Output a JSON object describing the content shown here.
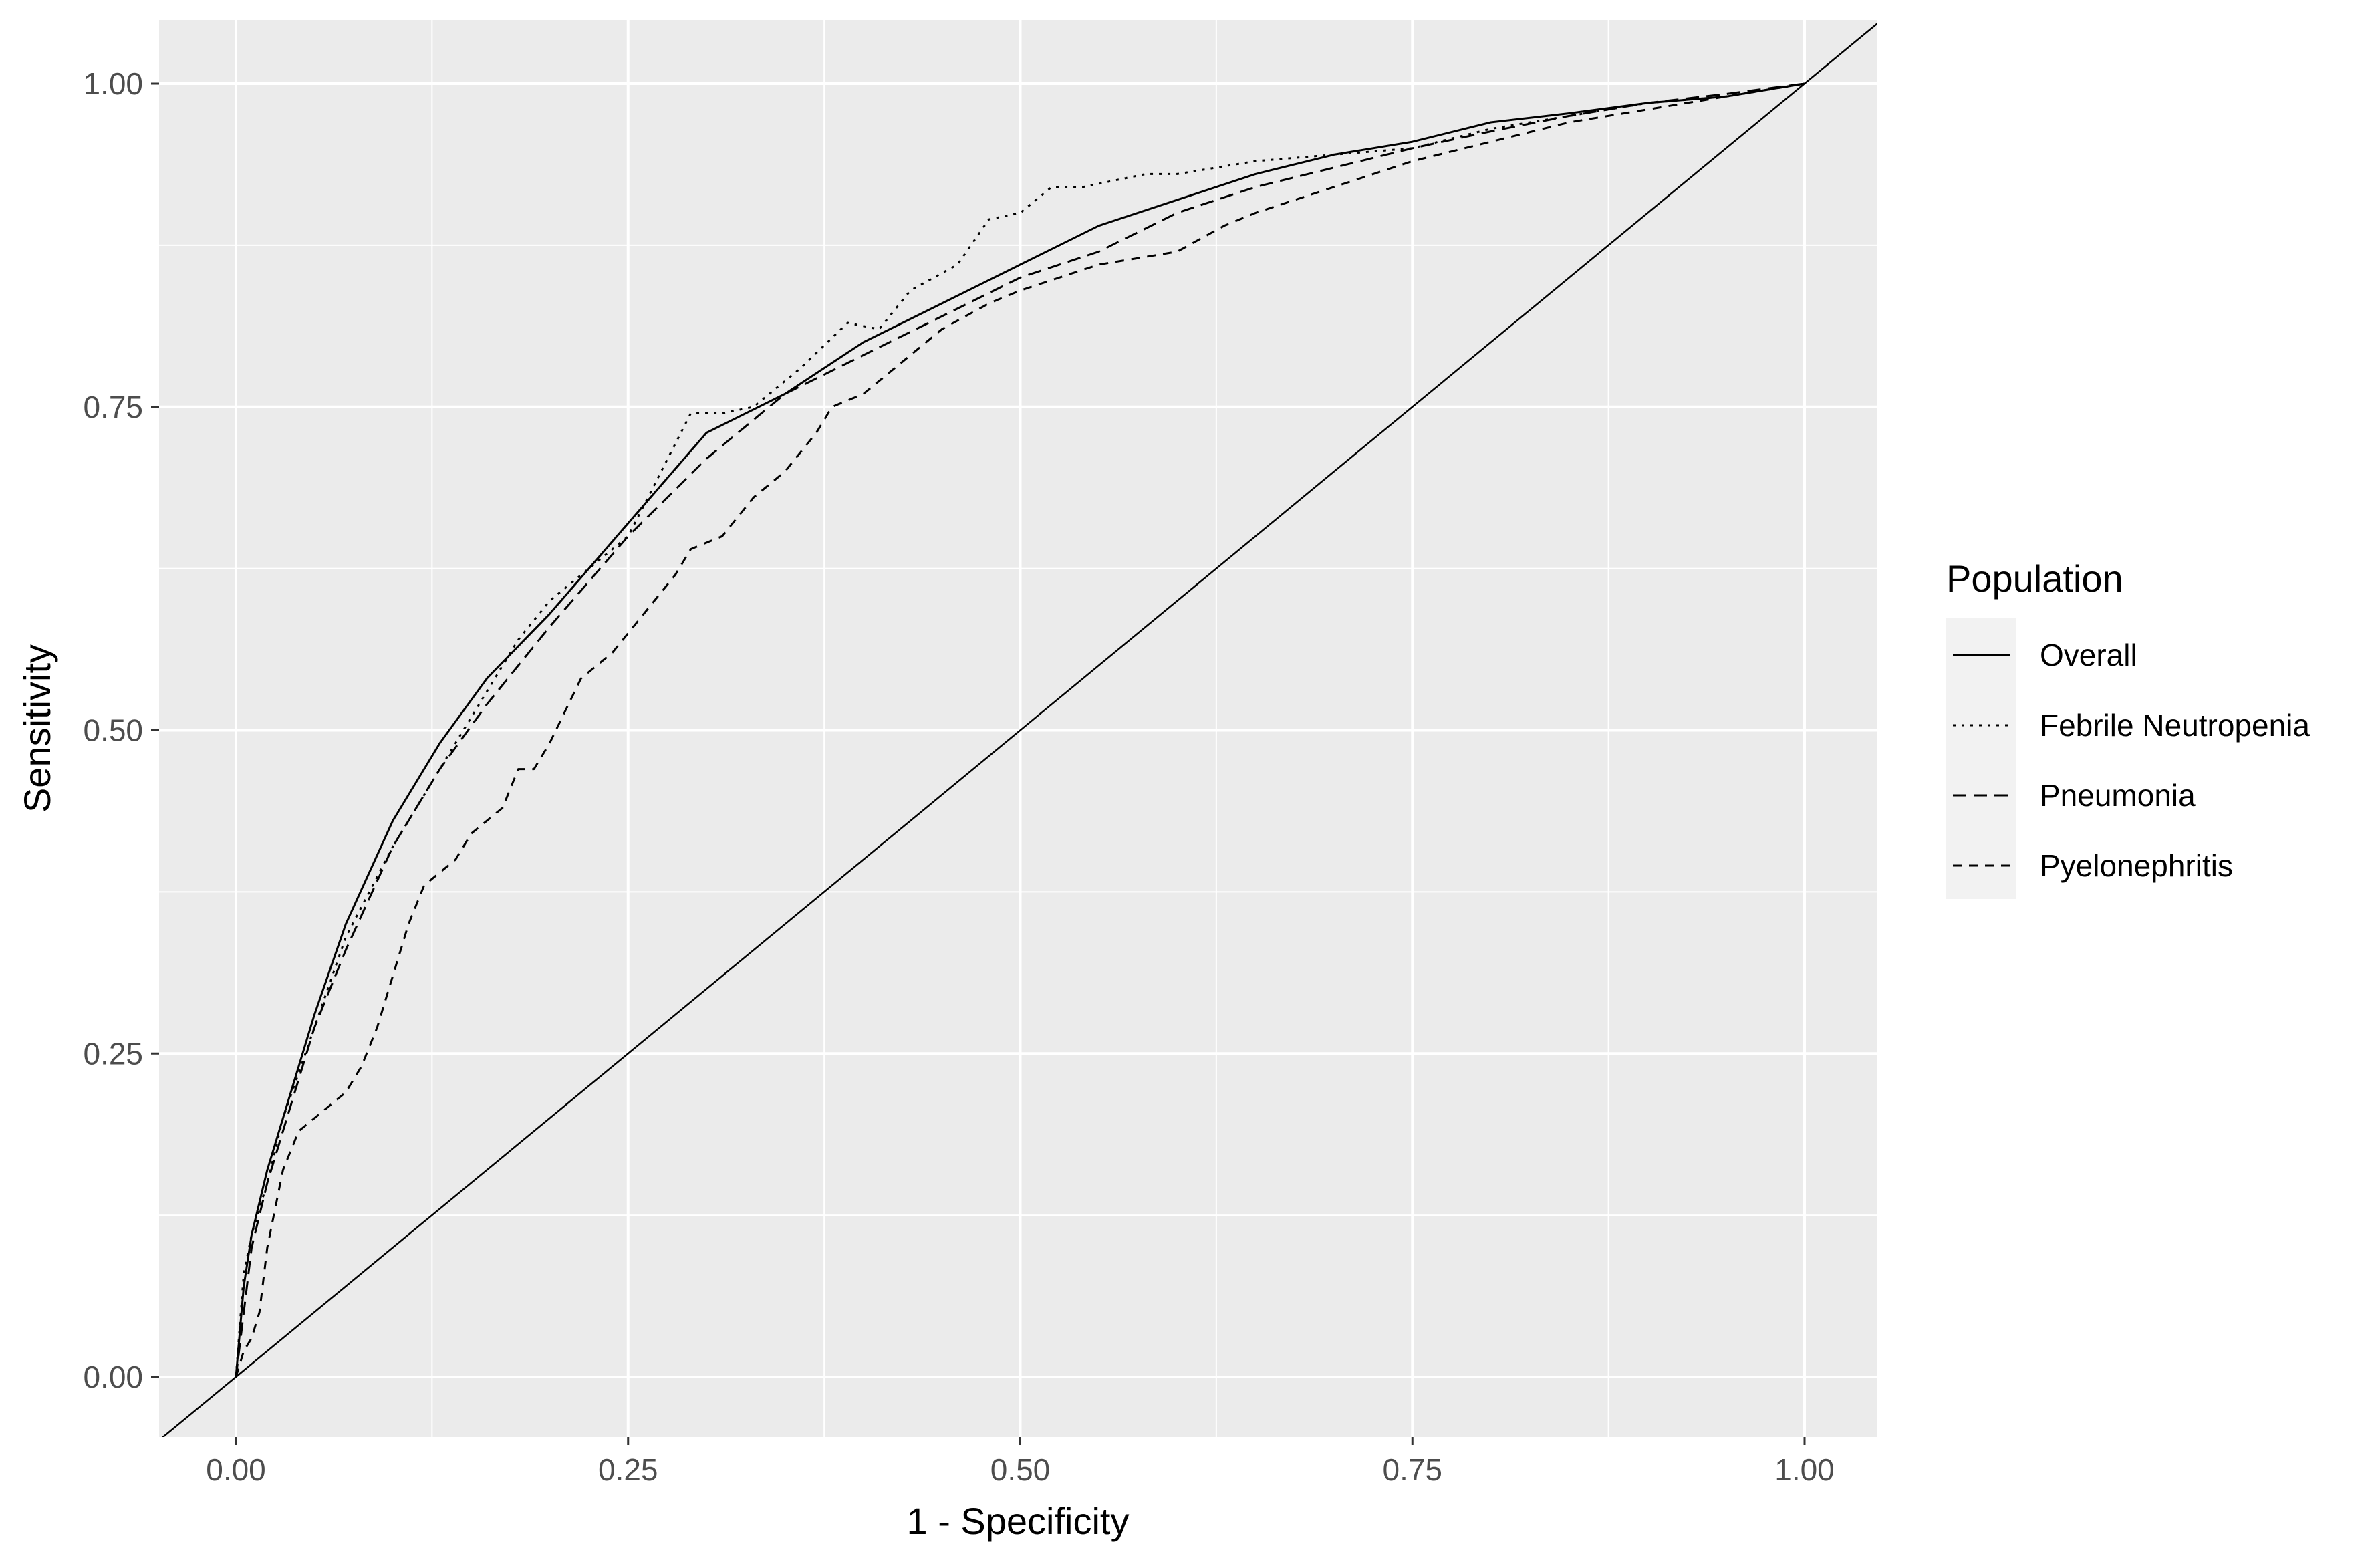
{
  "chart_data": {
    "type": "line",
    "title": "",
    "xlabel": "1 - Specificity",
    "ylabel": "Sensitivity",
    "xlim": [
      0,
      1
    ],
    "ylim": [
      0,
      1
    ],
    "x_ticks": [
      "0.00",
      "0.25",
      "0.50",
      "0.75",
      "1.00"
    ],
    "y_ticks": [
      "0.00",
      "0.25",
      "0.50",
      "0.75",
      "1.00"
    ],
    "grid": true,
    "panel_background": "#ebebeb",
    "legend": {
      "title": "Population",
      "position": "right"
    },
    "reference_line": {
      "from": [
        0,
        0
      ],
      "to": [
        1,
        1
      ]
    },
    "series": [
      {
        "name": "Overall",
        "linetype": "solid",
        "x": [
          0,
          0.005,
          0.01,
          0.02,
          0.03,
          0.04,
          0.05,
          0.07,
          0.1,
          0.13,
          0.16,
          0.2,
          0.25,
          0.3,
          0.35,
          0.4,
          0.45,
          0.5,
          0.55,
          0.6,
          0.65,
          0.7,
          0.75,
          0.8,
          0.85,
          0.9,
          0.95,
          1.0
        ],
        "y": [
          0,
          0.07,
          0.11,
          0.16,
          0.2,
          0.24,
          0.28,
          0.35,
          0.43,
          0.49,
          0.54,
          0.59,
          0.66,
          0.73,
          0.76,
          0.8,
          0.83,
          0.86,
          0.89,
          0.91,
          0.93,
          0.945,
          0.955,
          0.97,
          0.977,
          0.985,
          0.99,
          1.0
        ]
      },
      {
        "name": "Febrile Neutropenia",
        "linetype": "dotted",
        "x": [
          0,
          0.005,
          0.01,
          0.02,
          0.03,
          0.05,
          0.07,
          0.1,
          0.13,
          0.15,
          0.18,
          0.2,
          0.22,
          0.25,
          0.29,
          0.31,
          0.33,
          0.36,
          0.39,
          0.41,
          0.43,
          0.46,
          0.48,
          0.5,
          0.52,
          0.54,
          0.58,
          0.6,
          0.65,
          0.7,
          0.75,
          0.8,
          0.85,
          0.9,
          0.95,
          1.0
        ],
        "y": [
          0,
          0.08,
          0.11,
          0.15,
          0.2,
          0.27,
          0.34,
          0.41,
          0.47,
          0.51,
          0.57,
          0.6,
          0.62,
          0.65,
          0.745,
          0.745,
          0.75,
          0.78,
          0.815,
          0.81,
          0.84,
          0.86,
          0.895,
          0.9,
          0.92,
          0.92,
          0.93,
          0.93,
          0.94,
          0.945,
          0.95,
          0.965,
          0.975,
          0.985,
          0.99,
          1.0
        ]
      },
      {
        "name": "Pneumonia",
        "linetype": "dashed",
        "x": [
          0,
          0.01,
          0.02,
          0.03,
          0.05,
          0.07,
          0.1,
          0.13,
          0.16,
          0.2,
          0.25,
          0.3,
          0.35,
          0.4,
          0.45,
          0.5,
          0.55,
          0.6,
          0.65,
          0.7,
          0.75,
          0.8,
          0.85,
          0.9,
          0.95,
          1.0
        ],
        "y": [
          0,
          0.1,
          0.15,
          0.19,
          0.27,
          0.33,
          0.41,
          0.47,
          0.52,
          0.58,
          0.65,
          0.71,
          0.76,
          0.79,
          0.82,
          0.85,
          0.87,
          0.9,
          0.92,
          0.935,
          0.95,
          0.963,
          0.975,
          0.985,
          0.992,
          1.0
        ]
      },
      {
        "name": "Pyelonephritis",
        "linetype": "longdash",
        "x": [
          0,
          0.005,
          0.01,
          0.015,
          0.02,
          0.03,
          0.04,
          0.05,
          0.06,
          0.07,
          0.08,
          0.09,
          0.1,
          0.11,
          0.12,
          0.13,
          0.14,
          0.15,
          0.17,
          0.18,
          0.19,
          0.2,
          0.22,
          0.24,
          0.26,
          0.28,
          0.29,
          0.31,
          0.33,
          0.35,
          0.37,
          0.38,
          0.4,
          0.42,
          0.45,
          0.48,
          0.5,
          0.55,
          0.6,
          0.63,
          0.65,
          0.7,
          0.75,
          0.8,
          0.85,
          0.9,
          0.95,
          1.0
        ],
        "y": [
          0,
          0.02,
          0.03,
          0.05,
          0.1,
          0.16,
          0.19,
          0.2,
          0.21,
          0.22,
          0.24,
          0.27,
          0.31,
          0.35,
          0.38,
          0.39,
          0.4,
          0.42,
          0.44,
          0.47,
          0.47,
          0.49,
          0.54,
          0.56,
          0.59,
          0.62,
          0.64,
          0.65,
          0.68,
          0.7,
          0.73,
          0.75,
          0.76,
          0.78,
          0.81,
          0.83,
          0.84,
          0.86,
          0.87,
          0.89,
          0.9,
          0.92,
          0.94,
          0.955,
          0.97,
          0.98,
          0.99,
          1.0
        ]
      }
    ]
  }
}
